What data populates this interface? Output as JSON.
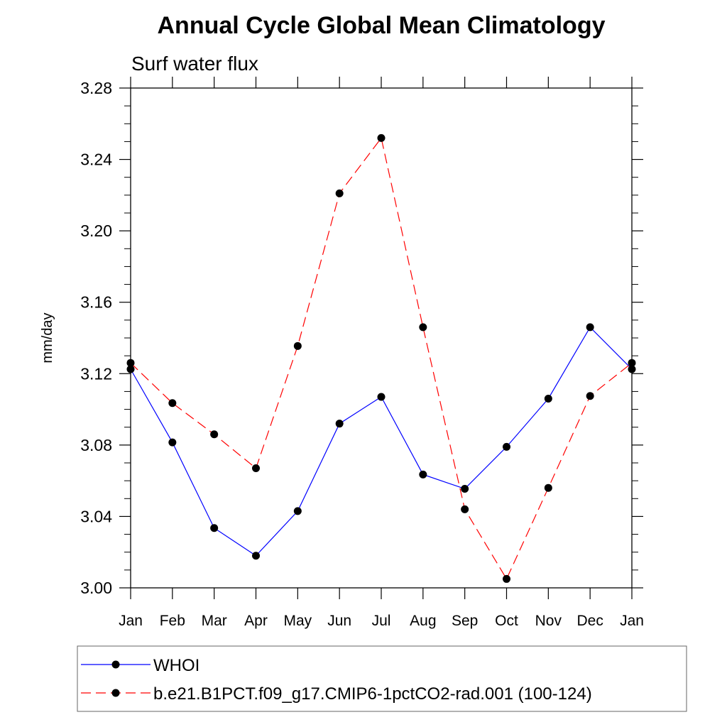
{
  "chart_data": {
    "type": "line",
    "title": "Annual Cycle Global Mean Climatology",
    "subtitle": "Surf water flux",
    "xlabel": "",
    "ylabel": "mm/day",
    "ylim": [
      3.0,
      3.28
    ],
    "yticks": [
      "3.00",
      "3.04",
      "3.08",
      "3.12",
      "3.16",
      "3.20",
      "3.24",
      "3.28"
    ],
    "ytick_values": [
      3.0,
      3.04,
      3.08,
      3.12,
      3.16,
      3.2,
      3.24,
      3.28
    ],
    "categories": [
      "Jan",
      "Feb",
      "Mar",
      "Apr",
      "May",
      "Jun",
      "Jul",
      "Aug",
      "Sep",
      "Oct",
      "Nov",
      "Dec",
      "Jan"
    ],
    "series": [
      {
        "name": "WHOI",
        "color": "#0000ff",
        "dash": "solid",
        "values": [
          3.1225,
          3.0815,
          3.0335,
          3.018,
          3.043,
          3.092,
          3.107,
          3.0635,
          3.0555,
          3.079,
          3.106,
          3.146,
          3.1225
        ]
      },
      {
        "name": "b.e21.B1PCT.f09_g17.CMIP6-1pctCO2-rad.001 (100-124)",
        "color": "#ff0000",
        "dash": "dashed",
        "values": [
          3.126,
          3.1035,
          3.086,
          3.067,
          3.1355,
          3.221,
          3.252,
          3.146,
          3.044,
          3.005,
          3.056,
          3.1075,
          3.126
        ]
      }
    ],
    "grid": false,
    "legend_position": "bottom"
  }
}
